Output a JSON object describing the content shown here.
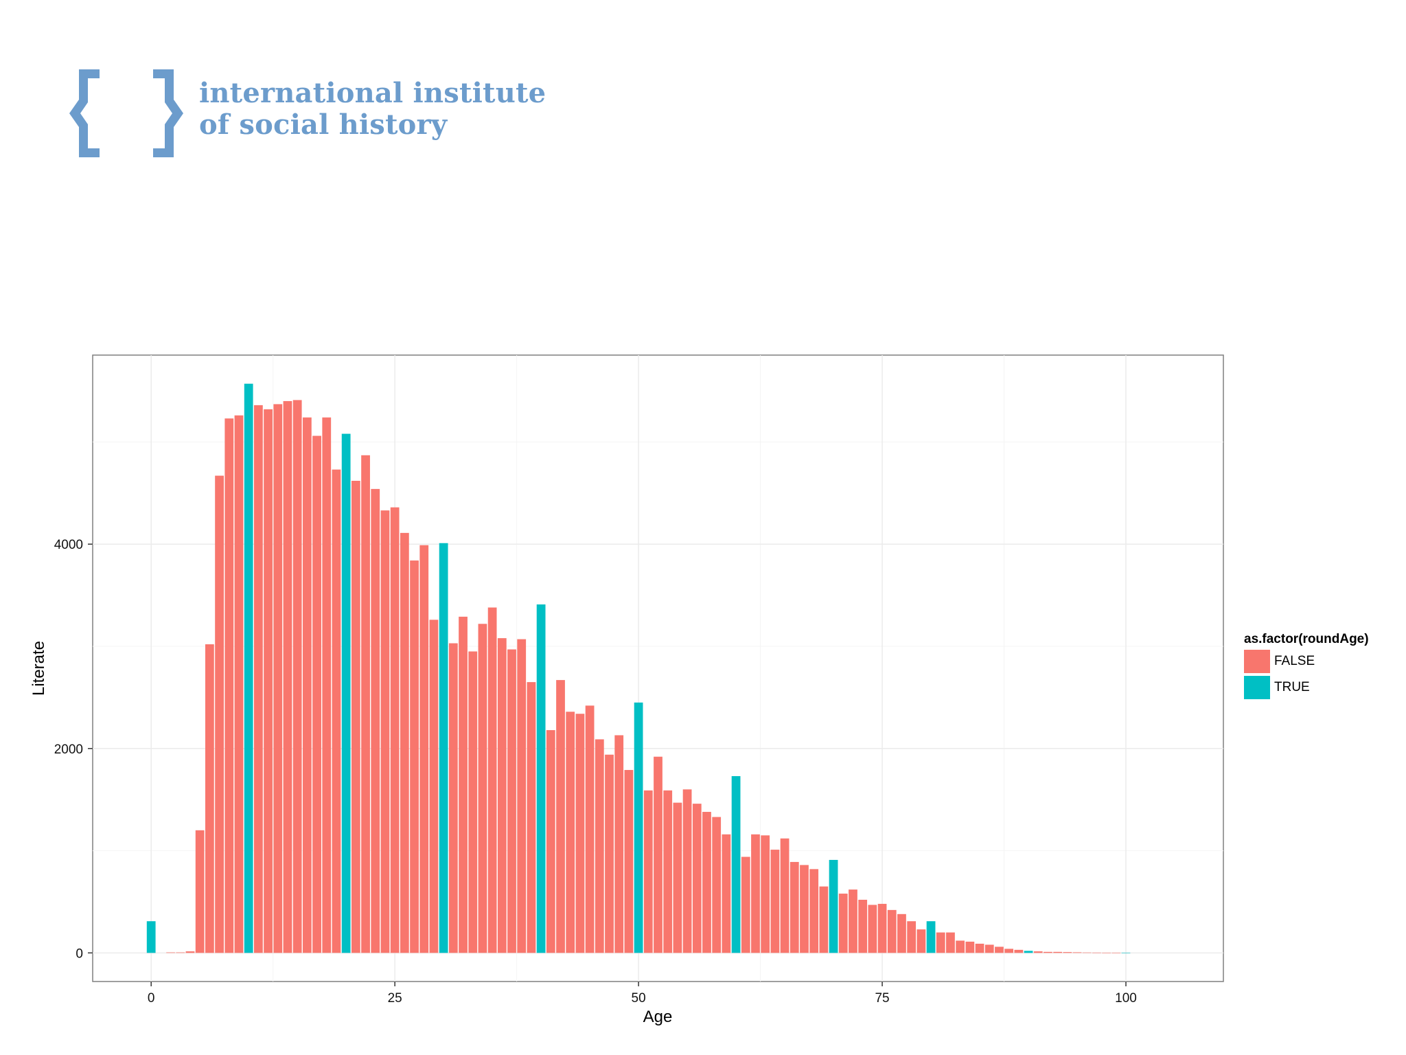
{
  "logo": {
    "line1": "international institute",
    "line2": "of social history",
    "color": "#6c9ccc"
  },
  "chart_data": {
    "type": "bar",
    "title": "",
    "xlabel": "Age",
    "ylabel": "Literate",
    "xlim": [
      -6,
      110
    ],
    "ylim": [
      -280,
      5850
    ],
    "x_ticks": [
      0,
      25,
      50,
      75,
      100
    ],
    "y_ticks": [
      0,
      2000,
      4000
    ],
    "grid": true,
    "legend_position": "right",
    "legend": {
      "title": "as.factor(roundAge)",
      "entries": [
        {
          "label": "FALSE",
          "color": "#f8766d"
        },
        {
          "label": "TRUE",
          "color": "#00bfc4"
        }
      ]
    },
    "x": [
      0,
      1,
      2,
      3,
      4,
      5,
      6,
      7,
      8,
      9,
      10,
      11,
      12,
      13,
      14,
      15,
      16,
      17,
      18,
      19,
      20,
      21,
      22,
      23,
      24,
      25,
      26,
      27,
      28,
      29,
      30,
      31,
      32,
      33,
      34,
      35,
      36,
      37,
      38,
      39,
      40,
      41,
      42,
      43,
      44,
      45,
      46,
      47,
      48,
      49,
      50,
      51,
      52,
      53,
      54,
      55,
      56,
      57,
      58,
      59,
      60,
      61,
      62,
      63,
      64,
      65,
      66,
      67,
      68,
      69,
      70,
      71,
      72,
      73,
      74,
      75,
      76,
      77,
      78,
      79,
      80,
      81,
      82,
      83,
      84,
      85,
      86,
      87,
      88,
      89,
      90,
      91,
      92,
      93,
      94,
      95,
      96,
      97,
      98,
      99,
      100
    ],
    "values": [
      310,
      0,
      5,
      5,
      15,
      1200,
      3020,
      4670,
      5230,
      5260,
      5570,
      5360,
      5320,
      5370,
      5400,
      5410,
      5240,
      5060,
      5240,
      4730,
      5080,
      4620,
      4870,
      4540,
      4330,
      4360,
      4110,
      3840,
      3990,
      3260,
      4010,
      3030,
      3290,
      2950,
      3220,
      3380,
      3080,
      2970,
      3070,
      2650,
      3410,
      2180,
      2670,
      2360,
      2340,
      2420,
      2090,
      1940,
      2130,
      1790,
      2450,
      1590,
      1920,
      1590,
      1470,
      1600,
      1460,
      1380,
      1330,
      1160,
      1730,
      940,
      1160,
      1150,
      1010,
      1120,
      890,
      860,
      820,
      650,
      910,
      580,
      620,
      520,
      470,
      480,
      420,
      380,
      310,
      230,
      310,
      200,
      200,
      120,
      110,
      90,
      80,
      60,
      40,
      30,
      20,
      15,
      10,
      10,
      8,
      6,
      4,
      3,
      2,
      2,
      1
    ],
    "flags": [
      "TRUE",
      "FALSE",
      "FALSE",
      "FALSE",
      "FALSE",
      "FALSE",
      "FALSE",
      "FALSE",
      "FALSE",
      "FALSE",
      "TRUE",
      "FALSE",
      "FALSE",
      "FALSE",
      "FALSE",
      "FALSE",
      "FALSE",
      "FALSE",
      "FALSE",
      "FALSE",
      "TRUE",
      "FALSE",
      "FALSE",
      "FALSE",
      "FALSE",
      "FALSE",
      "FALSE",
      "FALSE",
      "FALSE",
      "FALSE",
      "TRUE",
      "FALSE",
      "FALSE",
      "FALSE",
      "FALSE",
      "FALSE",
      "FALSE",
      "FALSE",
      "FALSE",
      "FALSE",
      "TRUE",
      "FALSE",
      "FALSE",
      "FALSE",
      "FALSE",
      "FALSE",
      "FALSE",
      "FALSE",
      "FALSE",
      "FALSE",
      "TRUE",
      "FALSE",
      "FALSE",
      "FALSE",
      "FALSE",
      "FALSE",
      "FALSE",
      "FALSE",
      "FALSE",
      "FALSE",
      "TRUE",
      "FALSE",
      "FALSE",
      "FALSE",
      "FALSE",
      "FALSE",
      "FALSE",
      "FALSE",
      "FALSE",
      "FALSE",
      "TRUE",
      "FALSE",
      "FALSE",
      "FALSE",
      "FALSE",
      "FALSE",
      "FALSE",
      "FALSE",
      "FALSE",
      "FALSE",
      "TRUE",
      "FALSE",
      "FALSE",
      "FALSE",
      "FALSE",
      "FALSE",
      "FALSE",
      "FALSE",
      "FALSE",
      "FALSE",
      "TRUE",
      "FALSE",
      "FALSE",
      "FALSE",
      "FALSE",
      "FALSE",
      "FALSE",
      "FALSE",
      "FALSE",
      "FALSE",
      "TRUE"
    ]
  }
}
